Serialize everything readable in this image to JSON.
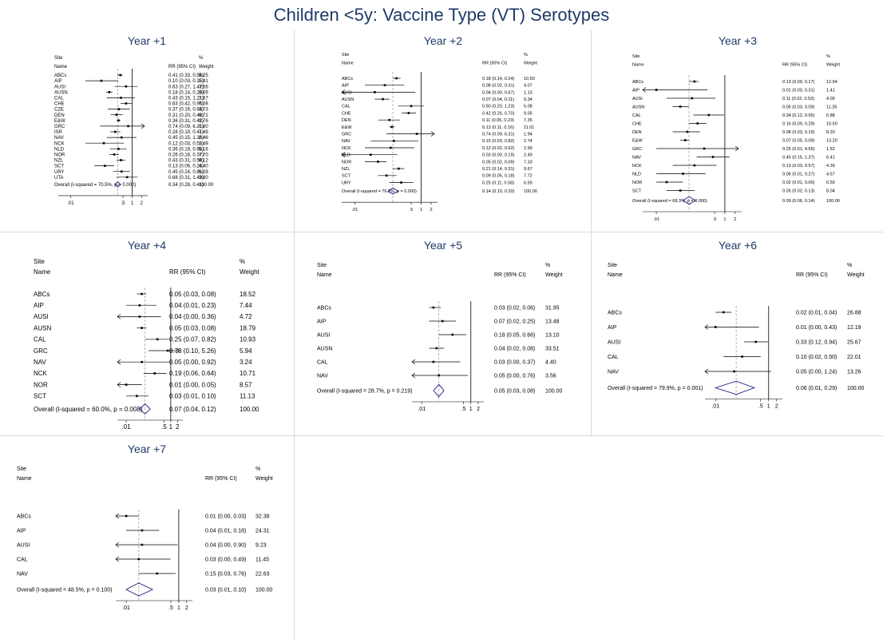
{
  "page_title": "Children <5y: Vaccine Type (VT) Serotypes",
  "colors": {
    "title": "#1f3a68",
    "diamond": "#1a1a80",
    "dashed_line": "#c58fa0",
    "ci_line": "#000000"
  },
  "column_headers": {
    "site": "Site",
    "name": "Name",
    "rr": "RR (95% CI)",
    "pct": "%",
    "weight": "Weight"
  },
  "axis_ticks": [
    ".01",
    ".5",
    "1",
    "2"
  ],
  "chart_data": [
    {
      "type": "forest",
      "title": "Year +1",
      "log_x": true,
      "rows": [
        {
          "site": "ABCs",
          "rr": 0.41,
          "lo": 0.33,
          "hi": 0.5,
          "rr_text": "0.41 (0.33, 0.50)",
          "weight": "9.25"
        },
        {
          "site": "AIP",
          "rr": 0.1,
          "lo": 0.03,
          "hi": 0.35,
          "rr_text": "0.10 (0.03, 0.35)",
          "weight": "1.91"
        },
        {
          "site": "AUSI",
          "rr": 0.63,
          "lo": 0.27,
          "hi": 1.47,
          "rr_text": "0.63 (0.27, 1.47)",
          "weight": "3.56"
        },
        {
          "site": "AUSN",
          "rr": 0.18,
          "lo": 0.14,
          "hi": 0.23,
          "rr_text": "0.18 (0.14, 0.23)",
          "weight": "8.69"
        },
        {
          "site": "CAL",
          "rr": 0.43,
          "lo": 0.15,
          "hi": 1.21,
          "rr_text": "0.43 (0.15, 1.21)",
          "weight": "2.67"
        },
        {
          "site": "CHE",
          "rr": 0.63,
          "lo": 0.42,
          "hi": 0.96,
          "rr_text": "0.63 (0.42, 0.96)",
          "weight": "7.08"
        },
        {
          "site": "CZE",
          "rr": 0.37,
          "lo": 0.16,
          "hi": 0.84,
          "rr_text": "0.37 (0.16, 0.84)",
          "weight": "3.73"
        },
        {
          "site": "DEN",
          "rr": 0.31,
          "lo": 0.2,
          "hi": 0.49,
          "rr_text": "0.31 (0.20, 0.49)",
          "weight": "6.72"
        },
        {
          "site": "E&W",
          "rr": 0.36,
          "lo": 0.31,
          "hi": 0.42,
          "rr_text": "0.36 (0.31, 0.42)",
          "weight": "9.76"
        },
        {
          "site": "GRC",
          "rr": 0.74,
          "lo": 0.09,
          "hi": 6.21,
          "rr_text": "0.74 (0.09, 6.21)",
          "weight": "0.80"
        },
        {
          "site": "ISR",
          "rr": 0.28,
          "lo": 0.19,
          "hi": 0.41,
          "rr_text": "0.28 (0.19, 0.41)",
          "weight": "7.49"
        },
        {
          "site": "NAV",
          "rr": 0.45,
          "lo": 0.15,
          "hi": 1.36,
          "rr_text": "0.45 (0.15, 1.36)",
          "weight": "2.46"
        },
        {
          "site": "NCK",
          "rr": 0.12,
          "lo": 0.03,
          "hi": 0.53,
          "rr_text": "0.12 (0.03, 0.53)",
          "weight": "1.49"
        },
        {
          "site": "NLD",
          "rr": 0.36,
          "lo": 0.19,
          "hi": 0.66,
          "rr_text": "0.36 (0.19, 0.66)",
          "weight": "5.16"
        },
        {
          "site": "NOR",
          "rr": 0.26,
          "lo": 0.18,
          "hi": 0.37,
          "rr_text": "0.26 (0.18, 0.37)",
          "weight": "7.70"
        },
        {
          "site": "NZL",
          "rr": 0.43,
          "lo": 0.31,
          "hi": 0.59,
          "rr_text": "0.43 (0.31, 0.59)",
          "weight": "8.12"
        },
        {
          "site": "SCT",
          "rr": 0.13,
          "lo": 0.06,
          "hi": 0.26,
          "rr_text": "0.13 (0.06, 0.26)",
          "weight": "4.40"
        },
        {
          "site": "URY",
          "rr": 0.45,
          "lo": 0.24,
          "hi": 0.85,
          "rr_text": "0.45 (0.24, 0.85)",
          "weight": "5.09"
        },
        {
          "site": "UTA",
          "rr": 0.68,
          "lo": 0.31,
          "hi": 1.49,
          "rr_text": "0.68 (0.31, 1.49)",
          "weight": "3.90"
        }
      ],
      "overall": {
        "label": "Overall  (I-squared = 70.5%, p = 0.000)",
        "rr": 0.34,
        "lo": 0.28,
        "hi": 0.41,
        "rr_text": "0.34 (0.28, 0.41)",
        "weight": "100.00"
      }
    },
    {
      "type": "forest",
      "title": "Year +2",
      "log_x": true,
      "rows": [
        {
          "site": "ABCs",
          "rr": 0.18,
          "lo": 0.14,
          "hi": 0.24,
          "rr_text": "0.18 (0.14, 0.24)",
          "weight": "10.50"
        },
        {
          "site": "AIP",
          "rr": 0.08,
          "lo": 0.02,
          "hi": 0.31,
          "rr_text": "0.08 (0.02, 0.31)",
          "weight": "4.07"
        },
        {
          "site": "AUSI",
          "rr": 0.04,
          "lo": 0.0,
          "hi": 0.67,
          "rr_text": "0.04 (0.00, 0.67)",
          "weight": "1.13"
        },
        {
          "site": "AUSN",
          "rr": 0.07,
          "lo": 0.04,
          "hi": 0.11,
          "rr_text": "0.07 (0.04, 0.11)",
          "weight": "9.34"
        },
        {
          "site": "CAL",
          "rr": 0.5,
          "lo": 0.2,
          "hi": 1.23,
          "rr_text": "0.50 (0.20, 1.23)",
          "weight": "6.08"
        },
        {
          "site": "CHE",
          "rr": 0.42,
          "lo": 0.26,
          "hi": 0.7,
          "rr_text": "0.42 (0.26, 0.70)",
          "weight": "9.05"
        },
        {
          "site": "DEN",
          "rr": 0.11,
          "lo": 0.05,
          "hi": 0.23,
          "rr_text": "0.11 (0.05, 0.23)",
          "weight": "7.35"
        },
        {
          "site": "E&W",
          "rr": 0.13,
          "lo": 0.11,
          "hi": 0.16,
          "rr_text": "0.13 (0.11, 0.16)",
          "weight": "11.01"
        },
        {
          "site": "GRC",
          "rr": 0.74,
          "lo": 0.09,
          "hi": 6.31,
          "rr_text": "0.74 (0.09, 6.31)",
          "weight": "1.94"
        },
        {
          "site": "NAV",
          "rr": 0.15,
          "lo": 0.03,
          "hi": 0.82,
          "rr_text": "0.15 (0.03, 0.82)",
          "weight": "2.74"
        },
        {
          "site": "NCK",
          "rr": 0.12,
          "lo": 0.02,
          "hi": 0.62,
          "rr_text": "0.12 (0.02, 0.62)",
          "weight": "2.99"
        },
        {
          "site": "NLD",
          "rr": 0.03,
          "lo": 0.0,
          "hi": 0.19,
          "rr_text": "0.03 (0.00, 0.19)",
          "weight": "2.49"
        },
        {
          "site": "NOR",
          "rr": 0.05,
          "lo": 0.02,
          "hi": 0.09,
          "rr_text": "0.05 (0.02, 0.09)",
          "weight": "7.33"
        },
        {
          "site": "NZL",
          "rr": 0.21,
          "lo": 0.14,
          "hi": 0.31,
          "rr_text": "0.21 (0.14, 0.31)",
          "weight": "9.67"
        },
        {
          "site": "SCT",
          "rr": 0.09,
          "lo": 0.05,
          "hi": 0.18,
          "rr_text": "0.09 (0.05, 0.18)",
          "weight": "7.72"
        },
        {
          "site": "URY",
          "rr": 0.25,
          "lo": 0.11,
          "hi": 0.58,
          "rr_text": "0.25 (0.11, 0.58)",
          "weight": "6.59"
        }
      ],
      "overall": {
        "label": "Overall  (I-squared = 76.3%, p = 0.000)",
        "rr": 0.14,
        "lo": 0.1,
        "hi": 0.2,
        "rr_text": "0.14 (0.10, 0.20)",
        "weight": "100.00"
      }
    },
    {
      "type": "forest",
      "title": "Year +3",
      "log_x": true,
      "rows": [
        {
          "site": "ABCs",
          "rr": 0.13,
          "lo": 0.09,
          "hi": 0.17,
          "rr_text": "0.13 (0.09, 0.17)",
          "weight": "12.94"
        },
        {
          "site": "AIP",
          "rr": 0.01,
          "lo": 0.0,
          "hi": 0.31,
          "rr_text": "0.01 (0.00, 0.31)",
          "weight": "1.41"
        },
        {
          "site": "AUSI",
          "rr": 0.11,
          "lo": 0.02,
          "hi": 0.53,
          "rr_text": "0.11 (0.02, 0.53)",
          "weight": "4.09"
        },
        {
          "site": "AUSN",
          "rr": 0.05,
          "lo": 0.03,
          "hi": 0.09,
          "rr_text": "0.05 (0.03, 0.09)",
          "weight": "11.26"
        },
        {
          "site": "CAL",
          "rr": 0.34,
          "lo": 0.12,
          "hi": 0.95,
          "rr_text": "0.34 (0.12, 0.95)",
          "weight": "6.88"
        },
        {
          "site": "CHE",
          "rr": 0.16,
          "lo": 0.09,
          "hi": 0.29,
          "rr_text": "0.16 (0.09, 0.29)",
          "weight": "10.50"
        },
        {
          "site": "DEN",
          "rr": 0.08,
          "lo": 0.03,
          "hi": 0.19,
          "rr_text": "0.08 (0.03, 0.19)",
          "weight": "8.20"
        },
        {
          "site": "E&W",
          "rr": 0.07,
          "lo": 0.05,
          "hi": 0.09,
          "rr_text": "0.07 (0.05, 0.09)",
          "weight": "13.20"
        },
        {
          "site": "GRC",
          "rr": 0.25,
          "lo": 0.01,
          "hi": 4.55,
          "rr_text": "0.25 (0.01, 4.55)",
          "weight": "1.52"
        },
        {
          "site": "NAV",
          "rr": 0.45,
          "lo": 0.15,
          "hi": 1.37,
          "rr_text": "0.45 (0.15, 1.37)",
          "weight": "6.41"
        },
        {
          "site": "NCK",
          "rr": 0.13,
          "lo": 0.03,
          "hi": 0.57,
          "rr_text": "0.13 (0.03, 0.57)",
          "weight": "4.39"
        },
        {
          "site": "NLD",
          "rr": 0.06,
          "lo": 0.01,
          "hi": 0.27,
          "rr_text": "0.06 (0.01, 0.27)",
          "weight": "4.57"
        },
        {
          "site": "NOR",
          "rr": 0.02,
          "lo": 0.01,
          "hi": 0.06,
          "rr_text": "0.02 (0.01, 0.06)",
          "weight": "6.59"
        },
        {
          "site": "SCT",
          "rr": 0.05,
          "lo": 0.02,
          "hi": 0.13,
          "rr_text": "0.05 (0.02, 0.13)",
          "weight": "8.04"
        }
      ],
      "overall": {
        "label": "Overall  (I-squared = 68.3%, p = 0.000)",
        "rr": 0.09,
        "lo": 0.06,
        "hi": 0.14,
        "rr_text": "0.09 (0.06, 0.14)",
        "weight": "100.00"
      }
    },
    {
      "type": "forest",
      "title": "Year +4",
      "log_x": true,
      "rows": [
        {
          "site": "ABCs",
          "rr": 0.05,
          "lo": 0.03,
          "hi": 0.08,
          "rr_text": "0.05 (0.03, 0.08)",
          "weight": "18.52"
        },
        {
          "site": "AIP",
          "rr": 0.04,
          "lo": 0.01,
          "hi": 0.23,
          "rr_text": "0.04 (0.01, 0.23)",
          "weight": "7.44"
        },
        {
          "site": "AUSI",
          "rr": 0.04,
          "lo": 0.0,
          "hi": 0.36,
          "rr_text": "0.04 (0.00, 0.36)",
          "weight": "4.72"
        },
        {
          "site": "AUSN",
          "rr": 0.05,
          "lo": 0.03,
          "hi": 0.08,
          "rr_text": "0.05 (0.03, 0.08)",
          "weight": "18.79"
        },
        {
          "site": "CAL",
          "rr": 0.25,
          "lo": 0.07,
          "hi": 0.82,
          "rr_text": "0.25 (0.07, 0.82)",
          "weight": "10.93"
        },
        {
          "site": "GRC",
          "rr": 0.73,
          "lo": 0.1,
          "hi": 5.26,
          "rr_text": "0.73 (0.10, 5.26)",
          "weight": "5.94"
        },
        {
          "site": "NAV",
          "rr": 0.05,
          "lo": 0.0,
          "hi": 0.92,
          "rr_text": "0.05 (0.00, 0.92)",
          "weight": "3.24"
        },
        {
          "site": "NCK",
          "rr": 0.19,
          "lo": 0.06,
          "hi": 0.64,
          "rr_text": "0.19 (0.06, 0.64)",
          "weight": "10.71"
        },
        {
          "site": "NOR",
          "rr": 0.01,
          "lo": 0.0,
          "hi": 0.05,
          "rr_text": "0.01 (0.00, 0.05)",
          "weight": "8.57"
        },
        {
          "site": "SCT",
          "rr": 0.03,
          "lo": 0.01,
          "hi": 0.1,
          "rr_text": "0.03 (0.01, 0.10)",
          "weight": "11.13"
        }
      ],
      "overall": {
        "label": "Overall  (I-squared = 60.0%, p = 0.008)",
        "rr": 0.07,
        "lo": 0.04,
        "hi": 0.12,
        "rr_text": "0.07 (0.04, 0.12)",
        "weight": "100.00"
      }
    },
    {
      "type": "forest",
      "title": "Year +5",
      "log_x": true,
      "rows": [
        {
          "site": "ABCs",
          "rr": 0.03,
          "lo": 0.02,
          "hi": 0.06,
          "rr_text": "0.03 (0.02, 0.06)",
          "weight": "31.95"
        },
        {
          "site": "AIP",
          "rr": 0.07,
          "lo": 0.02,
          "hi": 0.25,
          "rr_text": "0.07 (0.02, 0.25)",
          "weight": "13.48"
        },
        {
          "site": "AUSI",
          "rr": 0.18,
          "lo": 0.05,
          "hi": 0.66,
          "rr_text": "0.18 (0.05, 0.66)",
          "weight": "13.10"
        },
        {
          "site": "AUSN",
          "rr": 0.04,
          "lo": 0.02,
          "hi": 0.08,
          "rr_text": "0.04 (0.02, 0.08)",
          "weight": "33.51"
        },
        {
          "site": "CAL",
          "rr": 0.03,
          "lo": 0.0,
          "hi": 0.37,
          "rr_text": "0.03 (0.00, 0.37)",
          "weight": "4.40"
        },
        {
          "site": "NAV",
          "rr": 0.05,
          "lo": 0.0,
          "hi": 0.76,
          "rr_text": "0.05 (0.00, 0.76)",
          "weight": "3.56"
        }
      ],
      "overall": {
        "label": "Overall  (I-squared = 28.7%, p = 0.219)",
        "rr": 0.05,
        "lo": 0.03,
        "hi": 0.08,
        "rr_text": "0.05 (0.03, 0.08)",
        "weight": "100.00"
      }
    },
    {
      "type": "forest",
      "title": "Year +6",
      "log_x": true,
      "rows": [
        {
          "site": "ABCs",
          "rr": 0.02,
          "lo": 0.01,
          "hi": 0.04,
          "rr_text": "0.02 (0.01, 0.04)",
          "weight": "26.88"
        },
        {
          "site": "AIP",
          "rr": 0.01,
          "lo": 0.0,
          "hi": 0.43,
          "rr_text": "0.01 (0.00, 0.43)",
          "weight": "12.19"
        },
        {
          "site": "AUSI",
          "rr": 0.33,
          "lo": 0.12,
          "hi": 0.94,
          "rr_text": "0.33 (0.12, 0.94)",
          "weight": "25.67"
        },
        {
          "site": "CAL",
          "rr": 0.1,
          "lo": 0.02,
          "hi": 0.5,
          "rr_text": "0.10 (0.02, 0.50)",
          "weight": "22.01"
        },
        {
          "site": "NAV",
          "rr": 0.05,
          "lo": 0.0,
          "hi": 1.24,
          "rr_text": "0.05 (0.00, 1.24)",
          "weight": "13.26"
        }
      ],
      "overall": {
        "label": "Overall  (I-squared = 79.9%, p = 0.001)",
        "rr": 0.06,
        "lo": 0.01,
        "hi": 0.29,
        "rr_text": "0.06 (0.01, 0.29)",
        "weight": "100.00"
      }
    },
    {
      "type": "forest",
      "title": "Year +7",
      "log_x": true,
      "rows": [
        {
          "site": "ABCs",
          "rr": 0.01,
          "lo": 0.0,
          "hi": 0.03,
          "rr_text": "0.01 (0.00, 0.03)",
          "weight": "32.38"
        },
        {
          "site": "AIP",
          "rr": 0.04,
          "lo": 0.01,
          "hi": 0.18,
          "rr_text": "0.04 (0.01, 0.18)",
          "weight": "24.31"
        },
        {
          "site": "AUSI",
          "rr": 0.04,
          "lo": 0.0,
          "hi": 0.9,
          "rr_text": "0.04 (0.00, 0.90)",
          "weight": "9.23"
        },
        {
          "site": "CAL",
          "rr": 0.03,
          "lo": 0.0,
          "hi": 0.49,
          "rr_text": "0.03 (0.00, 0.49)",
          "weight": "11.45"
        },
        {
          "site": "NAV",
          "rr": 0.15,
          "lo": 0.03,
          "hi": 0.76,
          "rr_text": "0.15 (0.03, 0.76)",
          "weight": "22.63"
        }
      ],
      "overall": {
        "label": "Overall  (I-squared = 48.5%, p = 0.100)",
        "rr": 0.03,
        "lo": 0.01,
        "hi": 0.1,
        "rr_text": "0.03 (0.01, 0.10)",
        "weight": "100.00"
      }
    }
  ]
}
